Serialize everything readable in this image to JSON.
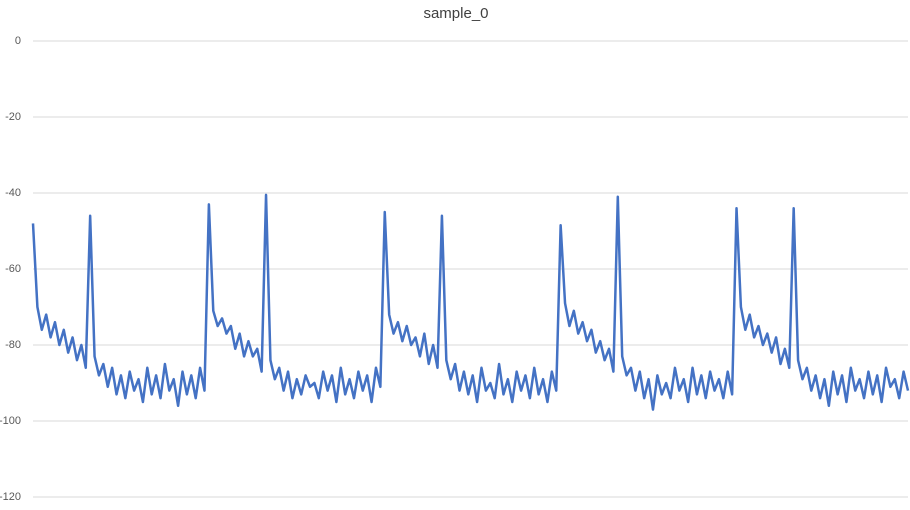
{
  "chart_data": {
    "type": "line",
    "title": "sample_0",
    "ylim": [
      -120,
      0
    ],
    "yticks": [
      0,
      -20,
      -40,
      -60,
      -80,
      -100,
      -120
    ],
    "grid": true,
    "series": [
      {
        "color": "#4472c4",
        "values": [
          -48,
          -70,
          -76,
          -72,
          -78,
          -74,
          -80,
          -76,
          -82,
          -78,
          -84,
          -80,
          -86,
          -46,
          -83,
          -88,
          -85,
          -91,
          -86,
          -93,
          -88,
          -94,
          -87,
          -92,
          -89,
          -95,
          -86,
          -93,
          -88,
          -94,
          -85,
          -92,
          -89,
          -96,
          -87,
          -93,
          -88,
          -94,
          -86,
          -92,
          -43,
          -71,
          -75,
          -73,
          -77,
          -75,
          -81,
          -77,
          -83,
          -79,
          -83,
          -81,
          -87,
          -40.5,
          -84,
          -89,
          -86,
          -92,
          -87,
          -94,
          -89,
          -93,
          -88,
          -91,
          -90,
          -94,
          -87,
          -92,
          -88,
          -95,
          -86,
          -93,
          -89,
          -94,
          -87,
          -92,
          -88,
          -95,
          -86,
          -91,
          -45,
          -72,
          -77,
          -74,
          -79,
          -75,
          -80,
          -78,
          -83,
          -77,
          -85,
          -80,
          -86,
          -46,
          -84,
          -89,
          -85,
          -92,
          -87,
          -93,
          -88,
          -95,
          -86,
          -92,
          -90,
          -94,
          -85,
          -93,
          -89,
          -95,
          -87,
          -92,
          -88,
          -94,
          -86,
          -93,
          -89,
          -95,
          -87,
          -92,
          -48.5,
          -69,
          -75,
          -71,
          -77,
          -74,
          -79,
          -76,
          -82,
          -79,
          -84,
          -81,
          -87,
          -41,
          -83,
          -88,
          -86,
          -92,
          -87,
          -94,
          -89,
          -97,
          -88,
          -93,
          -90,
          -94,
          -86,
          -92,
          -89,
          -95,
          -86,
          -93,
          -88,
          -94,
          -87,
          -92,
          -89,
          -94,
          -87,
          -93,
          -44,
          -70,
          -76,
          -72,
          -78,
          -75,
          -80,
          -77,
          -82,
          -78,
          -85,
          -81,
          -86,
          -44,
          -84,
          -89,
          -86,
          -92,
          -88,
          -94,
          -89,
          -96,
          -87,
          -93,
          -88,
          -95,
          -86,
          -92,
          -89,
          -94,
          -87,
          -93,
          -88,
          -95,
          -86,
          -91,
          -89,
          -94,
          -87,
          -92
        ]
      }
    ]
  }
}
